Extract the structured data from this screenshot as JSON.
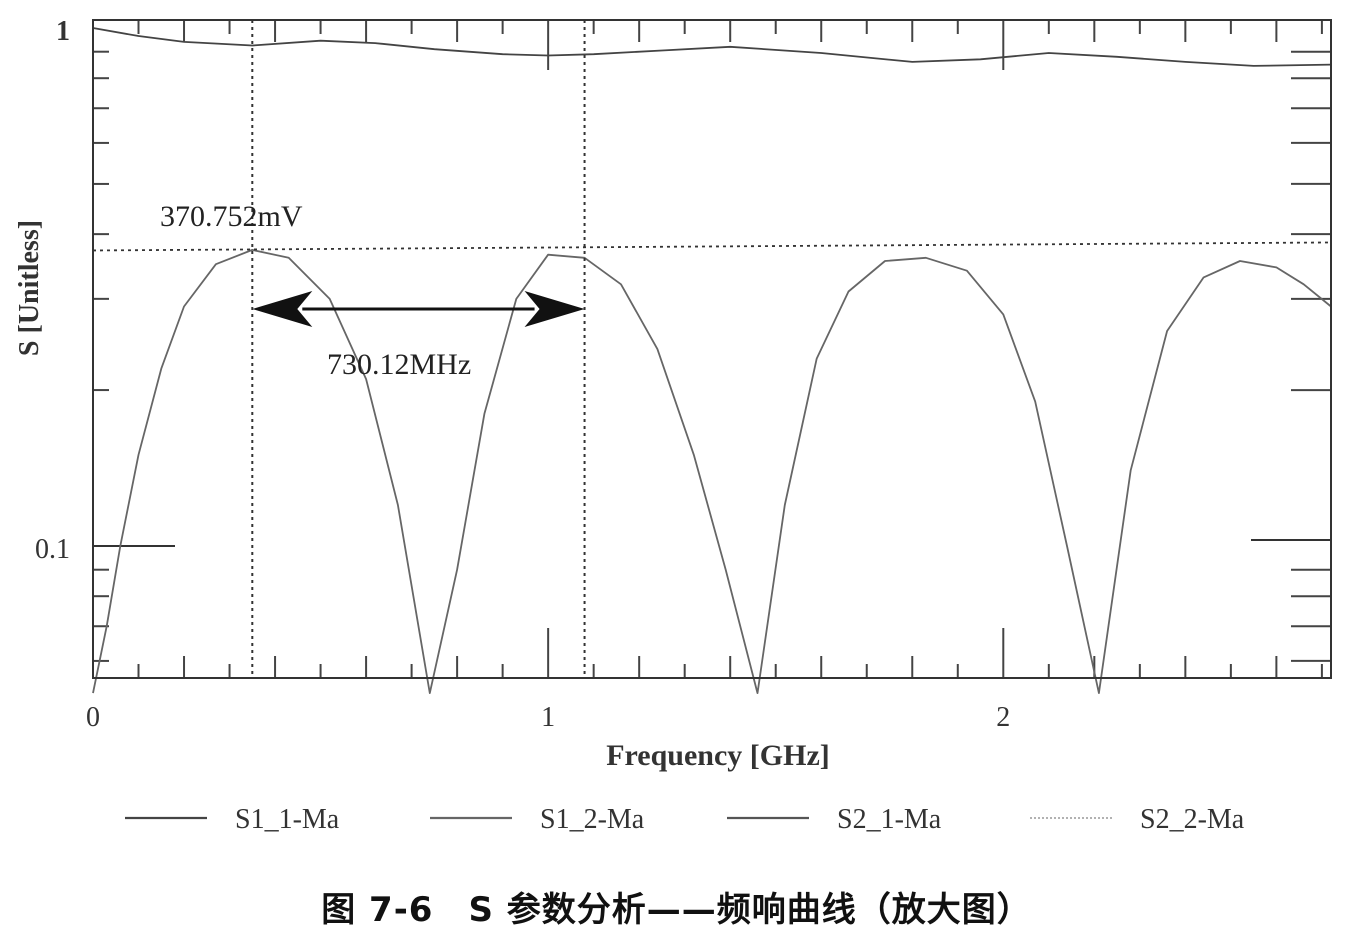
{
  "caption": "图 7-6　S 参数分析——频响曲线（放大图）",
  "chart_data": {
    "type": "line",
    "title": "",
    "xlabel": "Frequency [GHz]",
    "ylabel": "S [Unitless]",
    "x_scale": "linear",
    "y_scale": "log",
    "xlim": [
      0,
      2.72
    ],
    "ylim": [
      0.052,
      1.0
    ],
    "x_ticks": [
      {
        "value": 0,
        "label": "0"
      },
      {
        "value": 1,
        "label": "1"
      },
      {
        "value": 2,
        "label": "2"
      }
    ],
    "y_ticks": [
      {
        "value": 1,
        "label": "1"
      },
      {
        "value": 0.1,
        "label": "0.1"
      }
    ],
    "grid": false,
    "legend_position": "bottom",
    "series": [
      {
        "name": "S1_1-Ma",
        "color": "#444444",
        "x": [
          0,
          0.1,
          0.2,
          0.35,
          0.5,
          0.62,
          0.75,
          0.9,
          1.0,
          1.1,
          1.25,
          1.4,
          1.6,
          1.8,
          1.95,
          2.1,
          2.25,
          2.4,
          2.55,
          2.72
        ],
        "y": [
          1.0,
          0.965,
          0.94,
          0.925,
          0.945,
          0.935,
          0.91,
          0.89,
          0.885,
          0.89,
          0.905,
          0.92,
          0.895,
          0.86,
          0.87,
          0.895,
          0.88,
          0.86,
          0.845,
          0.85
        ]
      },
      {
        "name": "S1_2-Ma",
        "color": "#666666",
        "x": [
          0.0,
          0.03,
          0.06,
          0.1,
          0.15,
          0.2,
          0.27,
          0.35,
          0.43,
          0.52,
          0.6,
          0.67,
          0.74,
          0.8,
          0.86,
          0.93,
          1.0,
          1.08,
          1.16,
          1.24,
          1.32,
          1.39,
          1.46,
          1.52,
          1.59,
          1.66,
          1.74,
          1.83,
          1.92,
          2.0,
          2.07,
          2.14,
          2.21,
          2.28,
          2.36,
          2.44,
          2.52,
          2.6,
          2.66,
          2.72
        ],
        "y": [
          0.052,
          0.07,
          0.1,
          0.15,
          0.22,
          0.29,
          0.35,
          0.373,
          0.36,
          0.3,
          0.21,
          0.12,
          0.052,
          0.09,
          0.18,
          0.3,
          0.365,
          0.36,
          0.32,
          0.24,
          0.15,
          0.09,
          0.052,
          0.12,
          0.23,
          0.31,
          0.355,
          0.36,
          0.34,
          0.28,
          0.19,
          0.1,
          0.052,
          0.14,
          0.26,
          0.33,
          0.355,
          0.345,
          0.32,
          0.29
        ]
      },
      {
        "name": "S2_1-Ma",
        "color": "#555555",
        "x": [],
        "y": []
      },
      {
        "name": "S2_2-Ma",
        "color": "#999999",
        "x": [],
        "y": []
      }
    ],
    "markers": {
      "f1_ghz": 0.35,
      "f2_ghz": 1.08,
      "level": 0.372
    },
    "annotations": {
      "level_label": "370.752mV",
      "span_label": "730.12MHz"
    }
  }
}
